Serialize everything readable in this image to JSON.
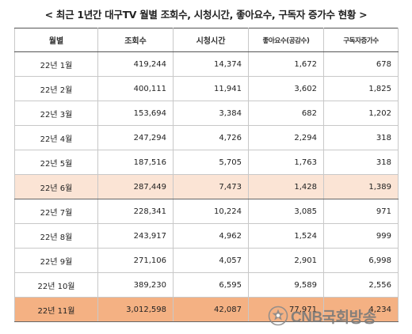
{
  "title": "< 최근 1년간 대구TV 월별 조회수, 시청시간, 좋아요수, 구독자 증가수 현황 >",
  "table": {
    "headers": [
      "월별",
      "조회수",
      "시청시간",
      "좋아요수(공감수)",
      "구독자증가수"
    ],
    "rows": [
      [
        "22년 1월",
        "419,244",
        "14,374",
        "1,672",
        "678"
      ],
      [
        "22년 2월",
        "400,111",
        "11,941",
        "3,602",
        "1,825"
      ],
      [
        "22년 3월",
        "153,694",
        "3,384",
        "682",
        "1,202"
      ],
      [
        "22년 4월",
        "247,294",
        "4,726",
        "2,294",
        "318"
      ],
      [
        "22년 5월",
        "187,516",
        "5,705",
        "1,763",
        "318"
      ],
      [
        "22년 6월",
        "287,449",
        "7,473",
        "1,428",
        "1,389"
      ],
      [
        "22년 7월",
        "228,341",
        "10,224",
        "3,085",
        "971"
      ],
      [
        "22년 8월",
        "243,917",
        "4,962",
        "1,524",
        "999"
      ],
      [
        "22년 9월",
        "271,106",
        "4,057",
        "2,901",
        "6,998"
      ],
      [
        "22년 10월",
        "389,230",
        "6,595",
        "9,589",
        "2,556"
      ],
      [
        "22년 11월",
        "3,012,598",
        "42,087",
        "77,971",
        "4,234"
      ]
    ]
  },
  "watermark": {
    "brand": "CNB국회방송",
    "icon": "parliament-seal-icon"
  },
  "colors": {
    "highlight_light": "#fbe4d5",
    "highlight_strong": "#f4b183",
    "border": "#c8c8c8",
    "watermark": "#7a7a7a"
  }
}
